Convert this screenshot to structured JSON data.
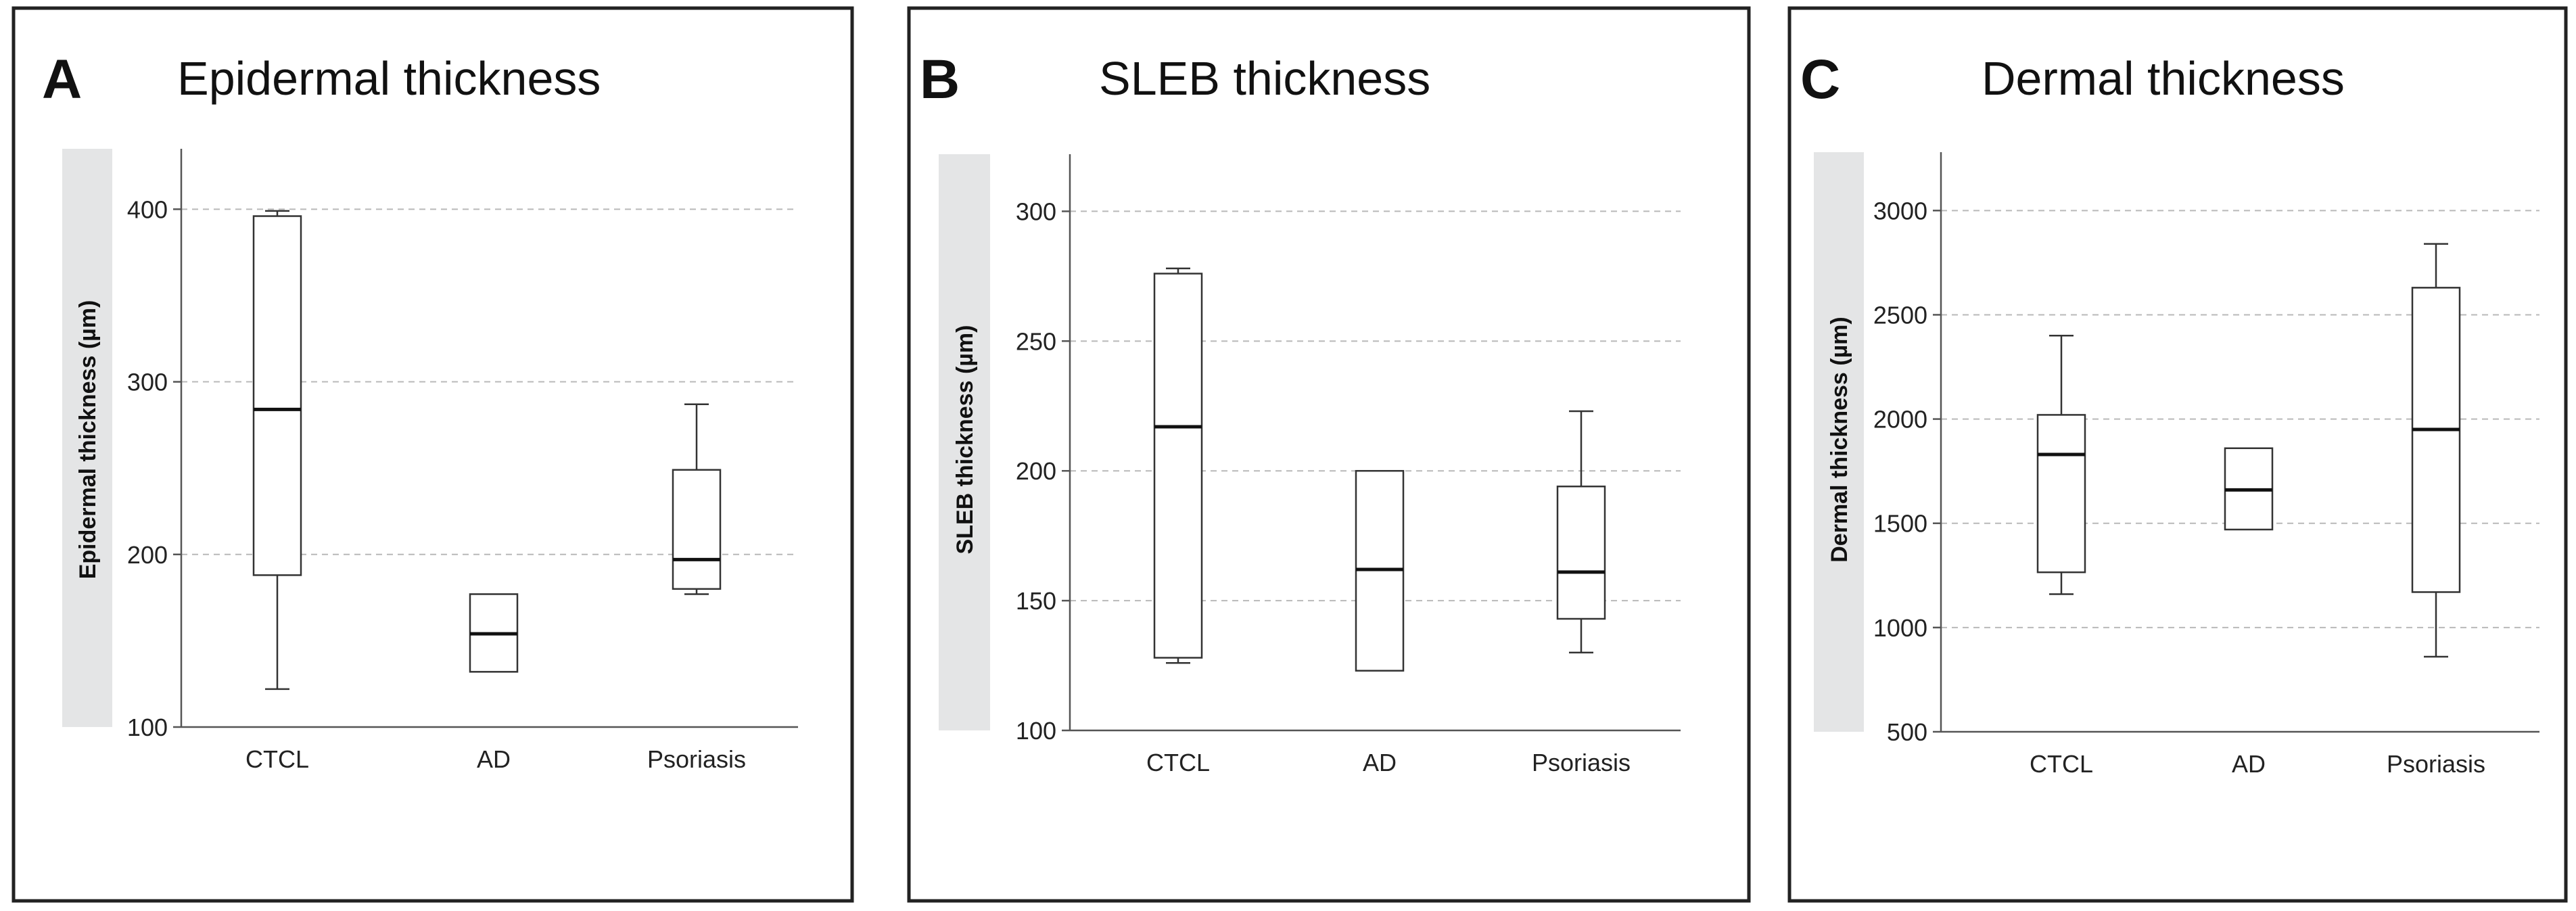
{
  "chart_data": [
    {
      "type": "boxplot",
      "panel_letter": "A",
      "title": "Epidermal thickness",
      "ylabel": "Epidermal thickness (µm)",
      "ylim": [
        100,
        435
      ],
      "yticks": [
        100,
        200,
        300,
        400
      ],
      "grid": true,
      "categories": [
        "CTCL",
        "AD",
        "Psoriasis"
      ],
      "boxes": [
        {
          "min": 122,
          "q1": 188,
          "median": 284,
          "q3": 396,
          "max": 399
        },
        {
          "min": 132,
          "q1": 132,
          "median": 154,
          "q3": 177,
          "max": 177
        },
        {
          "min": 177,
          "q1": 180,
          "median": 197,
          "q3": 249,
          "max": 287
        }
      ]
    },
    {
      "type": "boxplot",
      "panel_letter": "B",
      "title": "SLEB thickness",
      "ylabel": "SLEB thickness (µm)",
      "ylim": [
        100,
        322
      ],
      "yticks": [
        100,
        150,
        200,
        250,
        300
      ],
      "grid": true,
      "categories": [
        "CTCL",
        "AD",
        "Psoriasis"
      ],
      "boxes": [
        {
          "min": 126,
          "q1": 128,
          "median": 217,
          "q3": 276,
          "max": 278
        },
        {
          "min": 123,
          "q1": 123,
          "median": 162,
          "q3": 200,
          "max": 200
        },
        {
          "min": 130,
          "q1": 143,
          "median": 161,
          "q3": 194,
          "max": 223
        }
      ]
    },
    {
      "type": "boxplot",
      "panel_letter": "C",
      "title": "Dermal thickness",
      "ylabel": "Dermal thickness (µm)",
      "ylim": [
        500,
        3280
      ],
      "yticks": [
        500,
        1000,
        1500,
        2000,
        2500,
        3000
      ],
      "grid": true,
      "categories": [
        "CTCL",
        "AD",
        "Psoriasis"
      ],
      "boxes": [
        {
          "min": 1160,
          "q1": 1265,
          "median": 1830,
          "q3": 2020,
          "max": 2400
        },
        {
          "min": 1470,
          "q1": 1470,
          "median": 1660,
          "q3": 1860,
          "max": 1860
        },
        {
          "min": 860,
          "q1": 1170,
          "median": 1950,
          "q3": 2630,
          "max": 2840
        }
      ]
    }
  ]
}
